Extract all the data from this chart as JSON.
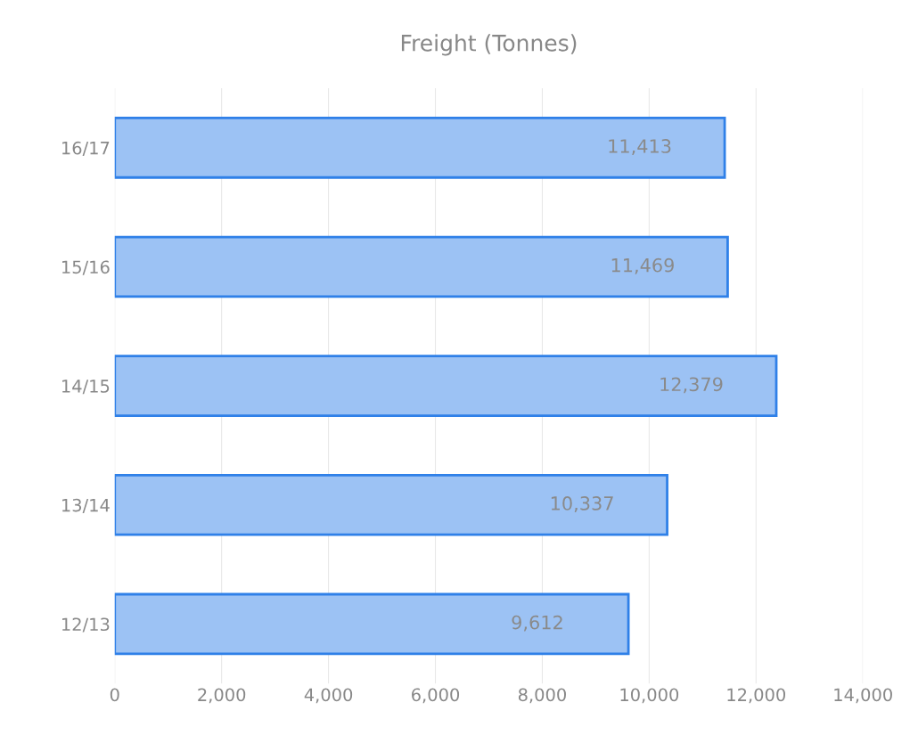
{
  "chart_data": {
    "type": "bar",
    "orientation": "horizontal",
    "title": "Freight (Tonnes)",
    "categories": [
      "16/17",
      "15/16",
      "14/15",
      "13/14",
      "12/13"
    ],
    "values": [
      11413,
      11469,
      12379,
      10337,
      9612
    ],
    "value_labels": [
      "11,413",
      "11,469",
      "12,379",
      "10,337",
      "9,612"
    ],
    "color": "#9cc2f4",
    "xlim": [
      0,
      14000
    ],
    "xticks": [
      {
        "value": 0,
        "label": "0"
      },
      {
        "value": 2000,
        "label": "2,000"
      },
      {
        "value": 4000,
        "label": "4,000"
      },
      {
        "value": 6000,
        "label": "6,000"
      },
      {
        "value": 8000,
        "label": "8,000"
      },
      {
        "value": 10000,
        "label": "10,000"
      },
      {
        "value": 12000,
        "label": "12,000"
      },
      {
        "value": 14000,
        "label": "14,000"
      }
    ],
    "grid": "x",
    "legend": false
  }
}
